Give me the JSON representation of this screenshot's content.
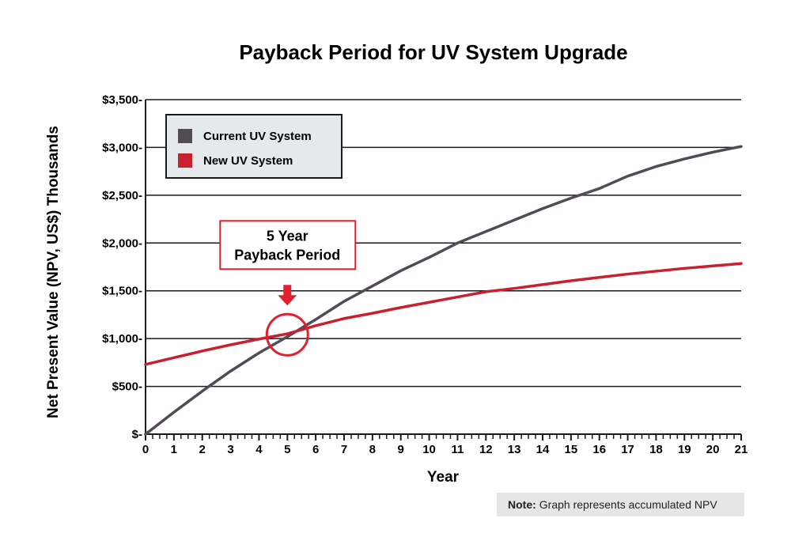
{
  "chart_data": {
    "type": "line",
    "title": "Payback Period for UV System Upgrade",
    "xlabel": "Year",
    "ylabel": "Net Present Value (NPV, US$) Thousands",
    "x": [
      0,
      1,
      2,
      3,
      4,
      5,
      6,
      7,
      8,
      9,
      10,
      11,
      12,
      13,
      14,
      15,
      16,
      17,
      18,
      19,
      20,
      21
    ],
    "xlim": [
      0,
      21
    ],
    "ylim": [
      0,
      3500
    ],
    "y_ticks": [
      0,
      500,
      1000,
      1500,
      2000,
      2500,
      3000,
      3500
    ],
    "y_tick_labels": [
      "$-",
      "$500-",
      "$1,000-",
      "$1,500-",
      "$2,000-",
      "$2,500-",
      "$3,000-",
      "$3,500-"
    ],
    "x_tick_labels": [
      "0",
      "1",
      "2",
      "3",
      "4",
      "5",
      "6",
      "7",
      "8",
      "9",
      "10",
      "11",
      "12",
      "13",
      "14",
      "15",
      "16",
      "17",
      "18",
      "19",
      "20",
      "21"
    ],
    "grid": "horizontal",
    "legend_position": "top-left",
    "series": [
      {
        "name": "Current UV System",
        "color": "#524a55",
        "values": [
          0,
          230,
          450,
          660,
          850,
          1020,
          1200,
          1390,
          1550,
          1710,
          1850,
          2000,
          2120,
          2240,
          2360,
          2470,
          2570,
          2700,
          2800,
          2880,
          2950,
          3010
        ]
      },
      {
        "name": "New UV System",
        "color": "#c8202f",
        "values": [
          730,
          800,
          870,
          935,
          995,
          1050,
          1135,
          1210,
          1265,
          1325,
          1380,
          1435,
          1490,
          1525,
          1565,
          1605,
          1640,
          1675,
          1705,
          1735,
          1760,
          1785
        ]
      }
    ],
    "annotations": [
      {
        "text_line1": "5 Year",
        "text_line2": "Payback Period",
        "x": 5,
        "y": 1040,
        "color": "#e0202f"
      }
    ],
    "note": {
      "bold": "Note:",
      "text": "Graph represents accumulated NPV"
    }
  }
}
